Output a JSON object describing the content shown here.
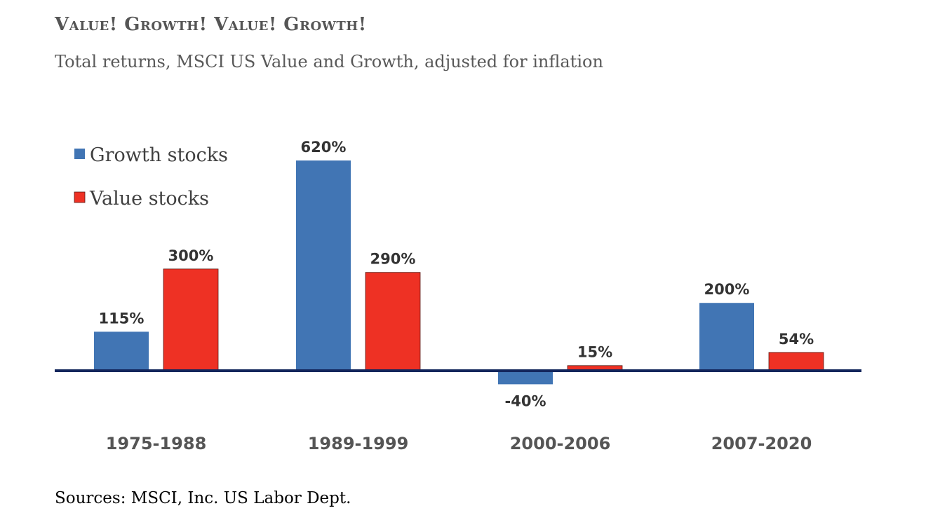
{
  "title": "Value! Growth! Value! Growth!",
  "subtitle": "Total returns, MSCI US Value and Growth, adjusted for inflation",
  "source": "Sources: MSCI, Inc. US Labor Dept.",
  "chart_data": {
    "type": "bar",
    "categories": [
      "1975-1988",
      "1989-1999",
      "2000-2006",
      "2007-2020"
    ],
    "series": [
      {
        "name": "Growth stocks",
        "color": "#4175B4",
        "values": [
          115,
          620,
          -40,
          200
        ],
        "labels": [
          "115%",
          "620%",
          "-40%",
          "200%"
        ]
      },
      {
        "name": "Value stocks",
        "color": "#EE3124",
        "values": [
          300,
          290,
          15,
          54
        ],
        "labels": [
          "300%",
          "290%",
          "15%",
          "54%"
        ]
      }
    ],
    "baseline_color": "#13265C",
    "legend_position": "top-left",
    "grid": false
  }
}
